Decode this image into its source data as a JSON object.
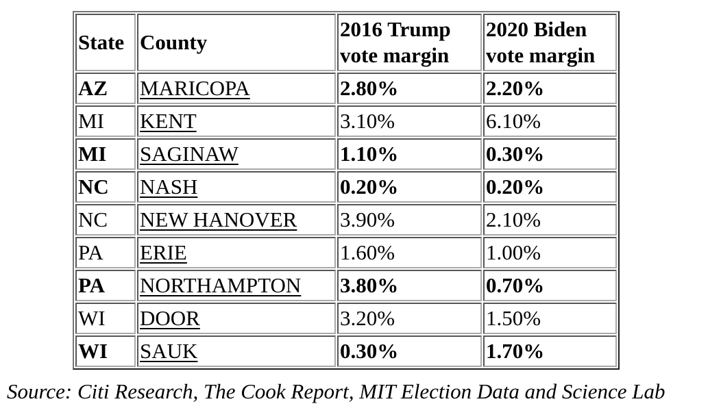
{
  "colors": {
    "background": "#ffffff",
    "text": "#000000",
    "table_border": "#767676"
  },
  "table": {
    "headers": {
      "state": "State",
      "county": "County",
      "margin2016": "2016 Trump vote margin",
      "margin2020": "2020 Biden vote margin"
    },
    "rows": [
      {
        "state": "AZ",
        "county": "MARICOPA",
        "margin2016": "2.80%",
        "margin2020": "2.20%",
        "bold": true
      },
      {
        "state": "MI",
        "county": "KENT",
        "margin2016": "3.10%",
        "margin2020": "6.10%",
        "bold": false
      },
      {
        "state": "MI",
        "county": "SAGINAW",
        "margin2016": "1.10%",
        "margin2020": "0.30%",
        "bold": true
      },
      {
        "state": "NC",
        "county": "NASH",
        "margin2016": "0.20%",
        "margin2020": "0.20%",
        "bold": true
      },
      {
        "state": "NC",
        "county": "NEW HANOVER",
        "margin2016": "3.90%",
        "margin2020": "2.10%",
        "bold": false
      },
      {
        "state": "PA",
        "county": "ERIE",
        "margin2016": "1.60%",
        "margin2020": "1.00%",
        "bold": false
      },
      {
        "state": "PA",
        "county": "NORTHAMPTON",
        "margin2016": "3.80%",
        "margin2020": "0.70%",
        "bold": true
      },
      {
        "state": "WI",
        "county": "DOOR",
        "margin2016": "3.20%",
        "margin2020": "1.50%",
        "bold": false
      },
      {
        "state": "WI",
        "county": "SAUK",
        "margin2016": "0.30%",
        "margin2020": "1.70%",
        "bold": true
      }
    ]
  },
  "source": "Source: Citi Research, The Cook Report, MIT Election Data and Science Lab"
}
